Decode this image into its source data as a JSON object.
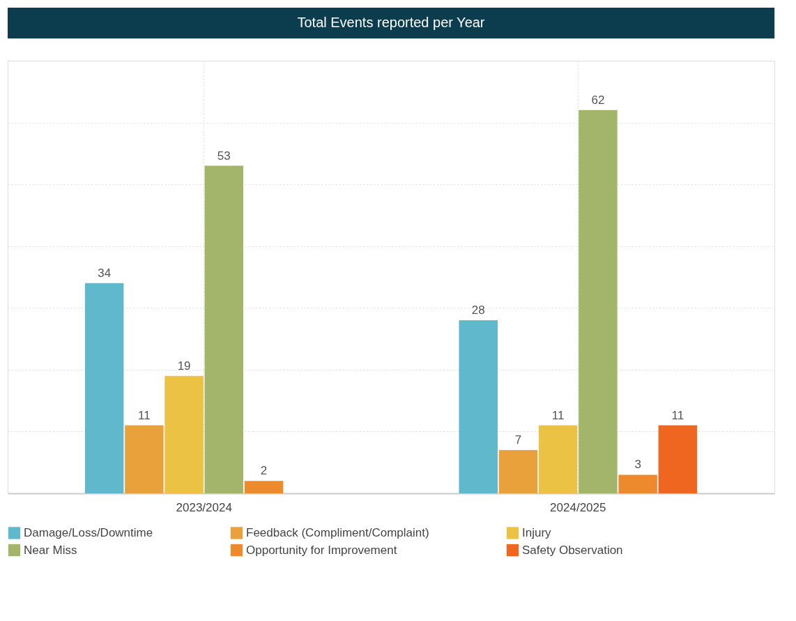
{
  "chart_data": {
    "type": "bar",
    "title": "Total Events reported per Year",
    "categories": [
      "2023/2024",
      "2024/2025"
    ],
    "series": [
      {
        "name": "Damage/Loss/Downtime",
        "color": "#5fb8cc",
        "values": [
          34,
          28
        ]
      },
      {
        "name": "Feedback (Compliment/Complaint)",
        "color": "#e9a23b",
        "values": [
          11,
          7
        ]
      },
      {
        "name": "Injury",
        "color": "#ecc245",
        "values": [
          19,
          11
        ]
      },
      {
        "name": "Near Miss",
        "color": "#a3b56b",
        "values": [
          53,
          62
        ]
      },
      {
        "name": "Opportunity for Improvement",
        "color": "#ee8a2e",
        "values": [
          2,
          3
        ]
      },
      {
        "name": "Safety Observation",
        "color": "#ee6620",
        "values": [
          null,
          11
        ]
      }
    ],
    "ylim": [
      0,
      70
    ],
    "yticks": [
      {
        "value": 0,
        "label": null
      },
      {
        "value": 10,
        "label": null
      },
      {
        "value": 20,
        "label": null
      },
      {
        "value": 30,
        "label": null
      },
      {
        "value": 40,
        "label": null
      },
      {
        "value": 50,
        "label": null
      },
      {
        "value": 60,
        "label": null
      },
      {
        "value": 70,
        "label": null
      }
    ],
    "tick_labels": "x",
    "grid": true,
    "legend": "bottom",
    "data_labels": true
  }
}
